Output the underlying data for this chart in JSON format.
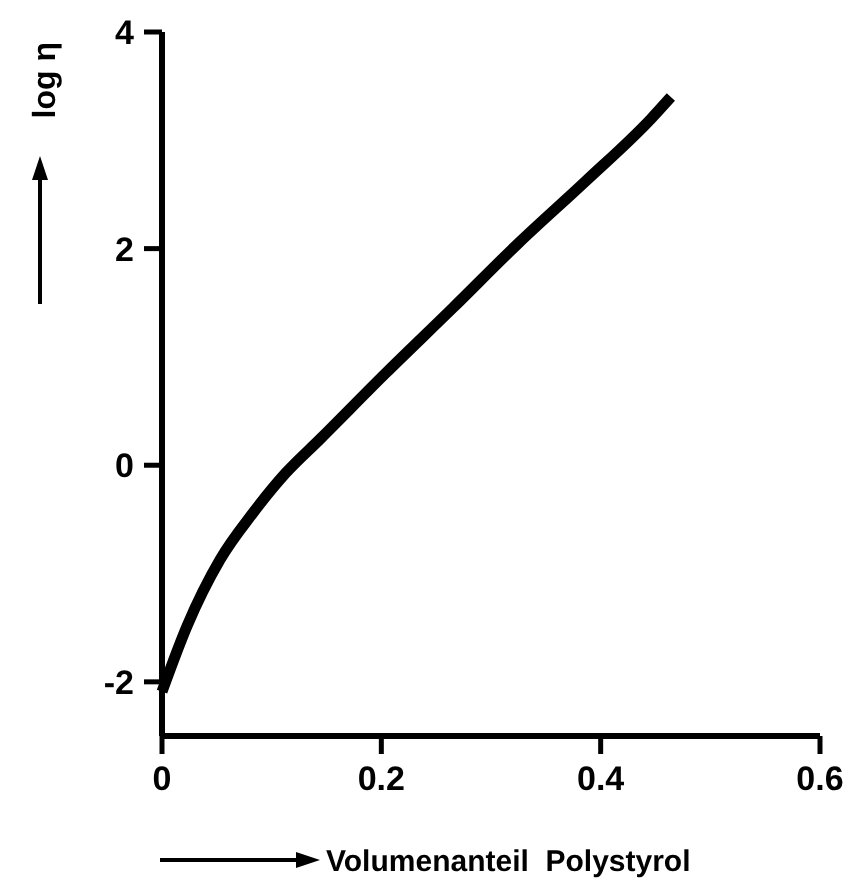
{
  "chart_data": {
    "type": "line",
    "xlabel": "Volumenanteil  Polystyrol",
    "ylabel": "log η",
    "x": [
      0,
      0.023,
      0.053,
      0.083,
      0.113,
      0.144,
      0.204,
      0.265,
      0.325,
      0.386,
      0.446,
      0.464
    ],
    "series": [
      {
        "color": "#000000",
        "values": [
          -2.09,
          -1.48,
          -0.87,
          -0.44,
          -0.07,
          0.24,
          0.85,
          1.45,
          2.05,
          2.62,
          3.2,
          3.4
        ]
      }
    ],
    "xlim": [
      0,
      0.6
    ],
    "xticks": [
      {
        "value": 0,
        "label": "0"
      },
      0.2,
      0.4,
      0.6
    ],
    "ylim": [
      -2.5,
      4
    ],
    "yticks": [
      -2,
      0,
      2,
      4
    ],
    "grid": false,
    "line_style": "solid"
  }
}
